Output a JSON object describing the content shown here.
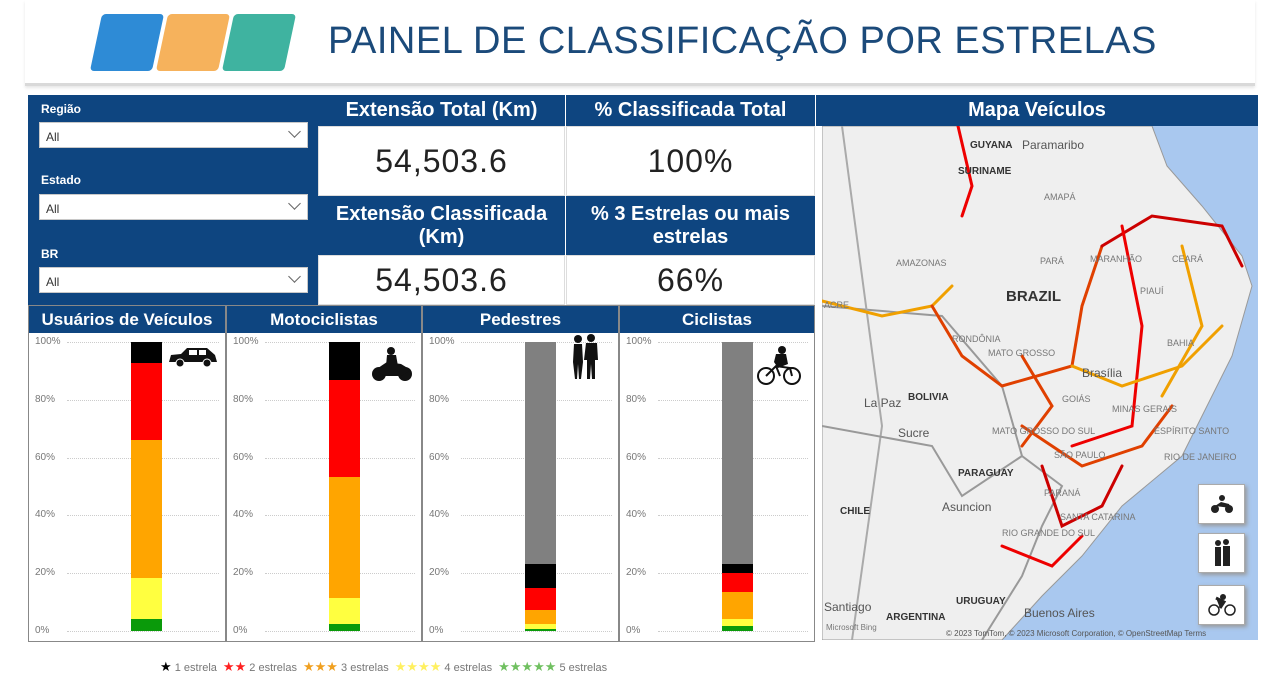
{
  "header": {
    "title": "PAINEL DE CLASSIFICAÇÃO POR ESTRELAS",
    "logos": [
      {
        "icon": "ship-icon",
        "color": "#2e8bd6"
      },
      {
        "icon": "train-icon",
        "color": "#f6b25c"
      },
      {
        "icon": "metro-icon",
        "color": "#3fb3a0"
      }
    ]
  },
  "colors": {
    "navy": "#0e4580",
    "1_estrela": "#000000",
    "2_estrelas": "#ff0000",
    "3_estrelas": "#ffa500",
    "4_estrelas": "#ffff40",
    "5_estrelas": "#0a9a0a",
    "nao_classificado": "#808080"
  },
  "filters": [
    {
      "label": "Região",
      "value": "All"
    },
    {
      "label": "Estado",
      "value": "All"
    },
    {
      "label": "BR",
      "value": "All"
    }
  ],
  "cards": [
    {
      "title": "Extensão Total (Km)",
      "value": "54,503.6"
    },
    {
      "title": "% Classificada Total",
      "value": "100%"
    },
    {
      "title": "Extensão Classificada (Km)",
      "value": "54,503.6"
    },
    {
      "title": "% 3 Estrelas ou mais estrelas",
      "value": "66%"
    }
  ],
  "chart_data": [
    {
      "type": "bar",
      "stacked": true,
      "title": "Usuários de Veículos",
      "icon": "car-icon",
      "yticks": [
        "0%",
        "20%",
        "40%",
        "60%",
        "80%",
        "100%"
      ],
      "ylim": [
        0,
        100
      ],
      "series": [
        {
          "name": "5 estrelas",
          "value": 4.0
        },
        {
          "name": "4 estrelas",
          "value": 14.3
        },
        {
          "name": "3 estrelas",
          "value": 47.7
        },
        {
          "name": "2 estrelas",
          "value": 26.7
        },
        {
          "name": "1 estrela",
          "value": 7.3
        }
      ]
    },
    {
      "type": "bar",
      "stacked": true,
      "title": "Motociclistas",
      "icon": "motorcycle-icon",
      "yticks": [
        "0%",
        "20%",
        "40%",
        "60%",
        "80%",
        "100%"
      ],
      "ylim": [
        0,
        100
      ],
      "series": [
        {
          "name": "5 estrelas",
          "value": 2.3
        },
        {
          "name": "4 estrelas",
          "value": 9.1
        },
        {
          "name": "3 estrelas",
          "value": 41.9
        },
        {
          "name": "2 estrelas",
          "value": 33.6
        },
        {
          "name": "1 estrela",
          "value": 13.1
        }
      ]
    },
    {
      "type": "bar",
      "stacked": true,
      "title": "Pedestres",
      "icon": "pedestrians-icon",
      "yticks": [
        "0%",
        "20%",
        "40%",
        "60%",
        "80%",
        "100%"
      ],
      "ylim": [
        0,
        100
      ],
      "series": [
        {
          "name": "5 estrelas",
          "value": 0.7
        },
        {
          "name": "4 estrelas",
          "value": 1.7
        },
        {
          "name": "3 estrelas",
          "value": 4.9
        },
        {
          "name": "2 estrelas",
          "value": 7.6
        },
        {
          "name": "1 estrela",
          "value": 8.3
        },
        {
          "name": "não classificado",
          "value": 76.8
        }
      ]
    },
    {
      "type": "bar",
      "stacked": true,
      "title": "Ciclistas",
      "icon": "bicycle-icon",
      "yticks": [
        "0%",
        "20%",
        "40%",
        "60%",
        "80%",
        "100%"
      ],
      "ylim": [
        0,
        100
      ],
      "series": [
        {
          "name": "5 estrelas",
          "value": 1.7
        },
        {
          "name": "4 estrelas",
          "value": 2.5
        },
        {
          "name": "3 estrelas",
          "value": 9.3
        },
        {
          "name": "2 estrelas",
          "value": 6.6
        },
        {
          "name": "1 estrela",
          "value": 3.1
        },
        {
          "name": "não classificado",
          "value": 76.8
        }
      ]
    }
  ],
  "legend": [
    {
      "stars": "★",
      "label": "1 estrela",
      "color": "#000000"
    },
    {
      "stars": "★★",
      "label": "2 estrelas",
      "color": "#ff2020"
    },
    {
      "stars": "★★★",
      "label": "3 estrelas",
      "color": "#f0a020"
    },
    {
      "stars": "★★★★",
      "label": "4 estrelas",
      "color": "#fff060"
    },
    {
      "stars": "★★★★★",
      "label": "5 estrelas",
      "color": "#70c060"
    }
  ],
  "map": {
    "title": "Mapa Veículos",
    "labels": [
      "GUYANA",
      "Paramaribo",
      "SURINAME",
      "AMAPÁ",
      "AMAZONAS",
      "PARÁ",
      "MARANHÃO",
      "CEARÁ",
      "BRAZIL",
      "PIAUÍ",
      "ACRE",
      "RONDÔNIA",
      "MATO GROSSO",
      "BAHIA",
      "Brasília",
      "La Paz",
      "BOLIVIA",
      "GOIÁS",
      "MINAS GERAIS",
      "Sucre",
      "MATO GROSSO DO SUL",
      "ESPÍRITO SANTO",
      "SÃO PAULO",
      "RIO DE JANEIRO",
      "PARAGUAY",
      "PARANÁ",
      "Asuncion",
      "CHILE",
      "SANTA CATARINA",
      "RIO GRANDE DO SUL",
      "URUGUAY",
      "Santiago",
      "ARGENTINA",
      "Buenos Aires"
    ],
    "attribution": "© 2023 TomTom, © 2023 Microsoft Corporation, © OpenStreetMap  Terms",
    "bing": "Microsoft Bing",
    "buttons": [
      "motorcycle-icon",
      "pedestrians-icon",
      "bicycle-icon"
    ]
  }
}
